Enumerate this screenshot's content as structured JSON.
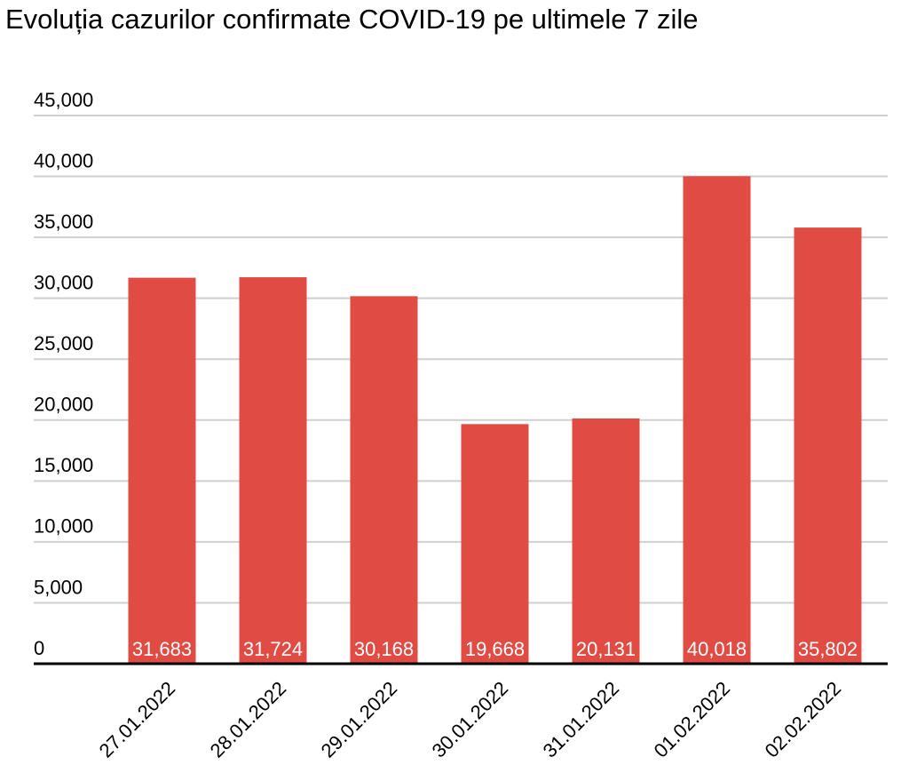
{
  "chart_data": {
    "type": "bar",
    "title": "Evoluția cazurilor confirmate COVID-19 pe ultimele 7 zile",
    "categories": [
      "27.01.2022",
      "28.01.2022",
      "29.01.2022",
      "30.01.2022",
      "31.01.2022",
      "01.02.2022",
      "02.02.2022"
    ],
    "values": [
      31683,
      31724,
      30168,
      19668,
      20131,
      40018,
      35802
    ],
    "value_labels": [
      "31,683",
      "31,724",
      "30,168",
      "19,668",
      "20,131",
      "40,018",
      "35,802"
    ],
    "color": "#e04b44",
    "ylim": [
      0,
      45000
    ],
    "yticks": [
      0,
      {
        "value": 5000,
        "label": "5,000"
      },
      {
        "value": 10000,
        "label": "10,000"
      },
      {
        "value": 15000,
        "label": "15,000"
      },
      {
        "value": 20000,
        "label": "20,000"
      },
      {
        "value": 25000,
        "label": "25,000"
      },
      {
        "value": 30000,
        "label": "30,000"
      },
      {
        "value": 35000,
        "label": "35,000"
      },
      {
        "value": 40000,
        "label": "40,000"
      },
      {
        "value": 45000,
        "label": "45,000"
      }
    ],
    "grid": true
  }
}
